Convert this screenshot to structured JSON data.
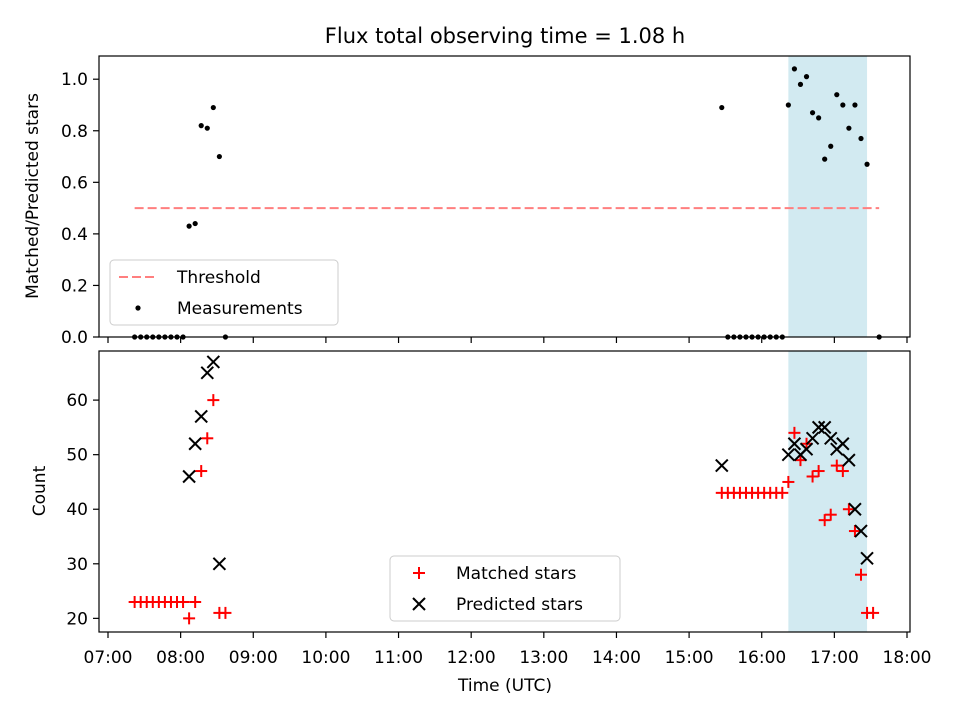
{
  "title": "Flux total observing time = 1.08 h",
  "colors": {
    "threshold": "#ff7f7f",
    "matched": "#ff0000",
    "predicted": "#000000",
    "shade": "#add8e6",
    "measure": "#000000"
  },
  "chart_data": [
    {
      "type": "scatter",
      "ylabel": "Matched/Predicted stars",
      "xlim": [
        "07:00",
        "18:00"
      ],
      "ylim": [
        0,
        1.09
      ],
      "yticks": [
        "0.0",
        "0.2",
        "0.4",
        "0.6",
        "0.8",
        "1.0"
      ],
      "shaded_span": [
        "16:22",
        "17:27"
      ],
      "legend": {
        "position": "lower-left",
        "entries": [
          "Threshold",
          "Measurements"
        ]
      },
      "threshold": {
        "name": "Threshold",
        "x": [
          "07:22",
          "17:37"
        ],
        "y": 0.5,
        "style": "dashed"
      },
      "series": [
        {
          "name": "Measurements",
          "points": [
            [
              "07:22",
              0
            ],
            [
              "07:27",
              0
            ],
            [
              "07:32",
              0
            ],
            [
              "07:37",
              0
            ],
            [
              "07:42",
              0
            ],
            [
              "07:47",
              0
            ],
            [
              "07:52",
              0
            ],
            [
              "07:57",
              0
            ],
            [
              "08:02",
              0
            ],
            [
              "08:07",
              0.43
            ],
            [
              "08:12",
              0.44
            ],
            [
              "08:17",
              0.82
            ],
            [
              "08:22",
              0.81
            ],
            [
              "08:27",
              0.89
            ],
            [
              "08:32",
              0.7
            ],
            [
              "08:37",
              0
            ],
            [
              "15:27",
              0.89
            ],
            [
              "15:32",
              0
            ],
            [
              "15:37",
              0
            ],
            [
              "15:42",
              0
            ],
            [
              "15:47",
              0
            ],
            [
              "15:52",
              0
            ],
            [
              "15:57",
              0
            ],
            [
              "16:02",
              0
            ],
            [
              "16:07",
              0
            ],
            [
              "16:12",
              0
            ],
            [
              "16:17",
              0
            ],
            [
              "16:22",
              0.9
            ],
            [
              "16:27",
              1.04
            ],
            [
              "16:32",
              0.98
            ],
            [
              "16:37",
              1.01
            ],
            [
              "16:42",
              0.87
            ],
            [
              "16:47",
              0.85
            ],
            [
              "16:52",
              0.69
            ],
            [
              "16:57",
              0.74
            ],
            [
              "17:02",
              0.94
            ],
            [
              "17:07",
              0.9
            ],
            [
              "17:12",
              0.81
            ],
            [
              "17:17",
              0.9
            ],
            [
              "17:22",
              0.77
            ],
            [
              "17:27",
              0.67
            ],
            [
              "17:37",
              0
            ]
          ]
        }
      ]
    },
    {
      "type": "scatter",
      "xlabel": "Time (UTC)",
      "ylabel": "Count",
      "xlim": [
        "07:00",
        "18:00"
      ],
      "xticks": [
        "07:00",
        "08:00",
        "09:00",
        "10:00",
        "11:00",
        "12:00",
        "13:00",
        "14:00",
        "15:00",
        "16:00",
        "17:00",
        "18:00"
      ],
      "ylim": [
        17.5,
        69
      ],
      "yticks": [
        "20",
        "30",
        "40",
        "50",
        "60"
      ],
      "shaded_span": [
        "16:22",
        "17:27"
      ],
      "legend": {
        "position": "lower-center",
        "entries": [
          "Matched stars",
          "Predicted stars"
        ]
      },
      "series": [
        {
          "name": "Matched stars",
          "marker": "+",
          "points": [
            [
              "07:22",
              23
            ],
            [
              "07:27",
              23
            ],
            [
              "07:32",
              23
            ],
            [
              "07:37",
              23
            ],
            [
              "07:42",
              23
            ],
            [
              "07:47",
              23
            ],
            [
              "07:52",
              23
            ],
            [
              "07:57",
              23
            ],
            [
              "08:02",
              23
            ],
            [
              "08:07",
              20
            ],
            [
              "08:12",
              23
            ],
            [
              "08:17",
              47
            ],
            [
              "08:22",
              53
            ],
            [
              "08:27",
              60
            ],
            [
              "08:32",
              21
            ],
            [
              "08:37",
              21
            ],
            [
              "15:27",
              43
            ],
            [
              "15:32",
              43
            ],
            [
              "15:37",
              43
            ],
            [
              "15:42",
              43
            ],
            [
              "15:47",
              43
            ],
            [
              "15:52",
              43
            ],
            [
              "15:57",
              43
            ],
            [
              "16:02",
              43
            ],
            [
              "16:07",
              43
            ],
            [
              "16:12",
              43
            ],
            [
              "16:17",
              43
            ],
            [
              "16:22",
              45
            ],
            [
              "16:27",
              54
            ],
            [
              "16:32",
              49
            ],
            [
              "16:37",
              52
            ],
            [
              "16:42",
              46
            ],
            [
              "16:47",
              47
            ],
            [
              "16:52",
              38
            ],
            [
              "16:57",
              39
            ],
            [
              "17:02",
              48
            ],
            [
              "17:07",
              47
            ],
            [
              "17:12",
              40
            ],
            [
              "17:17",
              36
            ],
            [
              "17:22",
              28
            ],
            [
              "17:27",
              21
            ],
            [
              "17:32",
              21
            ]
          ]
        },
        {
          "name": "Predicted stars",
          "marker": "x",
          "points": [
            [
              "08:07",
              46
            ],
            [
              "08:12",
              52
            ],
            [
              "08:17",
              57
            ],
            [
              "08:22",
              65
            ],
            [
              "08:27",
              67
            ],
            [
              "08:32",
              30
            ],
            [
              "15:27",
              48
            ],
            [
              "16:22",
              50
            ],
            [
              "16:27",
              52
            ],
            [
              "16:32",
              50
            ],
            [
              "16:37",
              51
            ],
            [
              "16:42",
              53
            ],
            [
              "16:47",
              55
            ],
            [
              "16:52",
              55
            ],
            [
              "16:57",
              53
            ],
            [
              "17:02",
              51
            ],
            [
              "17:07",
              52
            ],
            [
              "17:12",
              49
            ],
            [
              "17:17",
              40
            ],
            [
              "17:22",
              36
            ],
            [
              "17:27",
              31
            ]
          ]
        }
      ]
    }
  ]
}
